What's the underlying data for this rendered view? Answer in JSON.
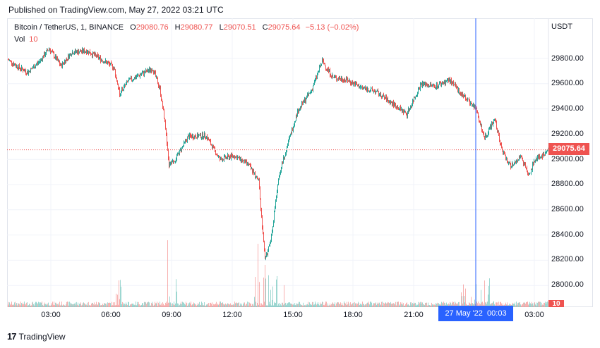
{
  "header": {
    "published": "Published on TradingView.com, May 27, 2022 03:21 UTC"
  },
  "legend": {
    "symbol": "Bitcoin / TetherUS, 1, BINANCE",
    "open_k": "O",
    "open": "29080.76",
    "high_k": "H",
    "high": "29080.77",
    "low_k": "L",
    "low": "29070.51",
    "close_k": "C",
    "close": "29075.64",
    "change": "−5.13 (−0.02%)",
    "vol_label": "Vol",
    "vol_value": "10"
  },
  "axis": {
    "currency": "USDT",
    "y_ticks": [
      "29800.00",
      "29600.00",
      "29400.00",
      "29200.00",
      "29000.00",
      "28800.00",
      "28600.00",
      "28400.00",
      "28200.00",
      "28000.00"
    ],
    "x_ticks": [
      "03:00",
      "06:00",
      "09:00",
      "12:00",
      "15:00",
      "18:00",
      "21:00",
      "03:00"
    ],
    "last_price": "29075.64",
    "last_volume": "10",
    "crosshair_date": "27 May '22",
    "crosshair_time": "00:03"
  },
  "footer": {
    "brand": "TradingView",
    "logo_icon": "tradingview-logo-icon"
  },
  "colors": {
    "up": "#26a69a",
    "down": "#ef5350",
    "crosshair": "#2962ff"
  },
  "chart_data": {
    "type": "candlestick",
    "ylim": [
      27850,
      30050
    ],
    "keypoints": [
      [
        0,
        29790
      ],
      [
        15,
        29730
      ],
      [
        28,
        29690
      ],
      [
        45,
        29780
      ],
      [
        58,
        29880
      ],
      [
        75,
        29740
      ],
      [
        90,
        29850
      ],
      [
        112,
        29860
      ],
      [
        130,
        29800
      ],
      [
        150,
        29730
      ],
      [
        158,
        29520
      ],
      [
        170,
        29620
      ],
      [
        190,
        29680
      ],
      [
        205,
        29720
      ],
      [
        215,
        29560
      ],
      [
        222,
        29300
      ],
      [
        228,
        28950
      ],
      [
        238,
        29010
      ],
      [
        255,
        29180
      ],
      [
        280,
        29190
      ],
      [
        300,
        29000
      ],
      [
        320,
        29030
      ],
      [
        340,
        28960
      ],
      [
        355,
        28830
      ],
      [
        364,
        28200
      ],
      [
        372,
        28350
      ],
      [
        384,
        28880
      ],
      [
        395,
        29100
      ],
      [
        410,
        29380
      ],
      [
        430,
        29550
      ],
      [
        445,
        29780
      ],
      [
        460,
        29650
      ],
      [
        480,
        29630
      ],
      [
        500,
        29570
      ],
      [
        520,
        29540
      ],
      [
        545,
        29440
      ],
      [
        565,
        29360
      ],
      [
        585,
        29600
      ],
      [
        605,
        29580
      ],
      [
        625,
        29630
      ],
      [
        645,
        29500
      ],
      [
        662,
        29410
      ],
      [
        675,
        29170
      ],
      [
        690,
        29320
      ],
      [
        700,
        29060
      ],
      [
        712,
        28940
      ],
      [
        725,
        29020
      ],
      [
        738,
        28880
      ],
      [
        748,
        29010
      ],
      [
        758,
        29030
      ],
      [
        765,
        29075
      ]
    ]
  }
}
